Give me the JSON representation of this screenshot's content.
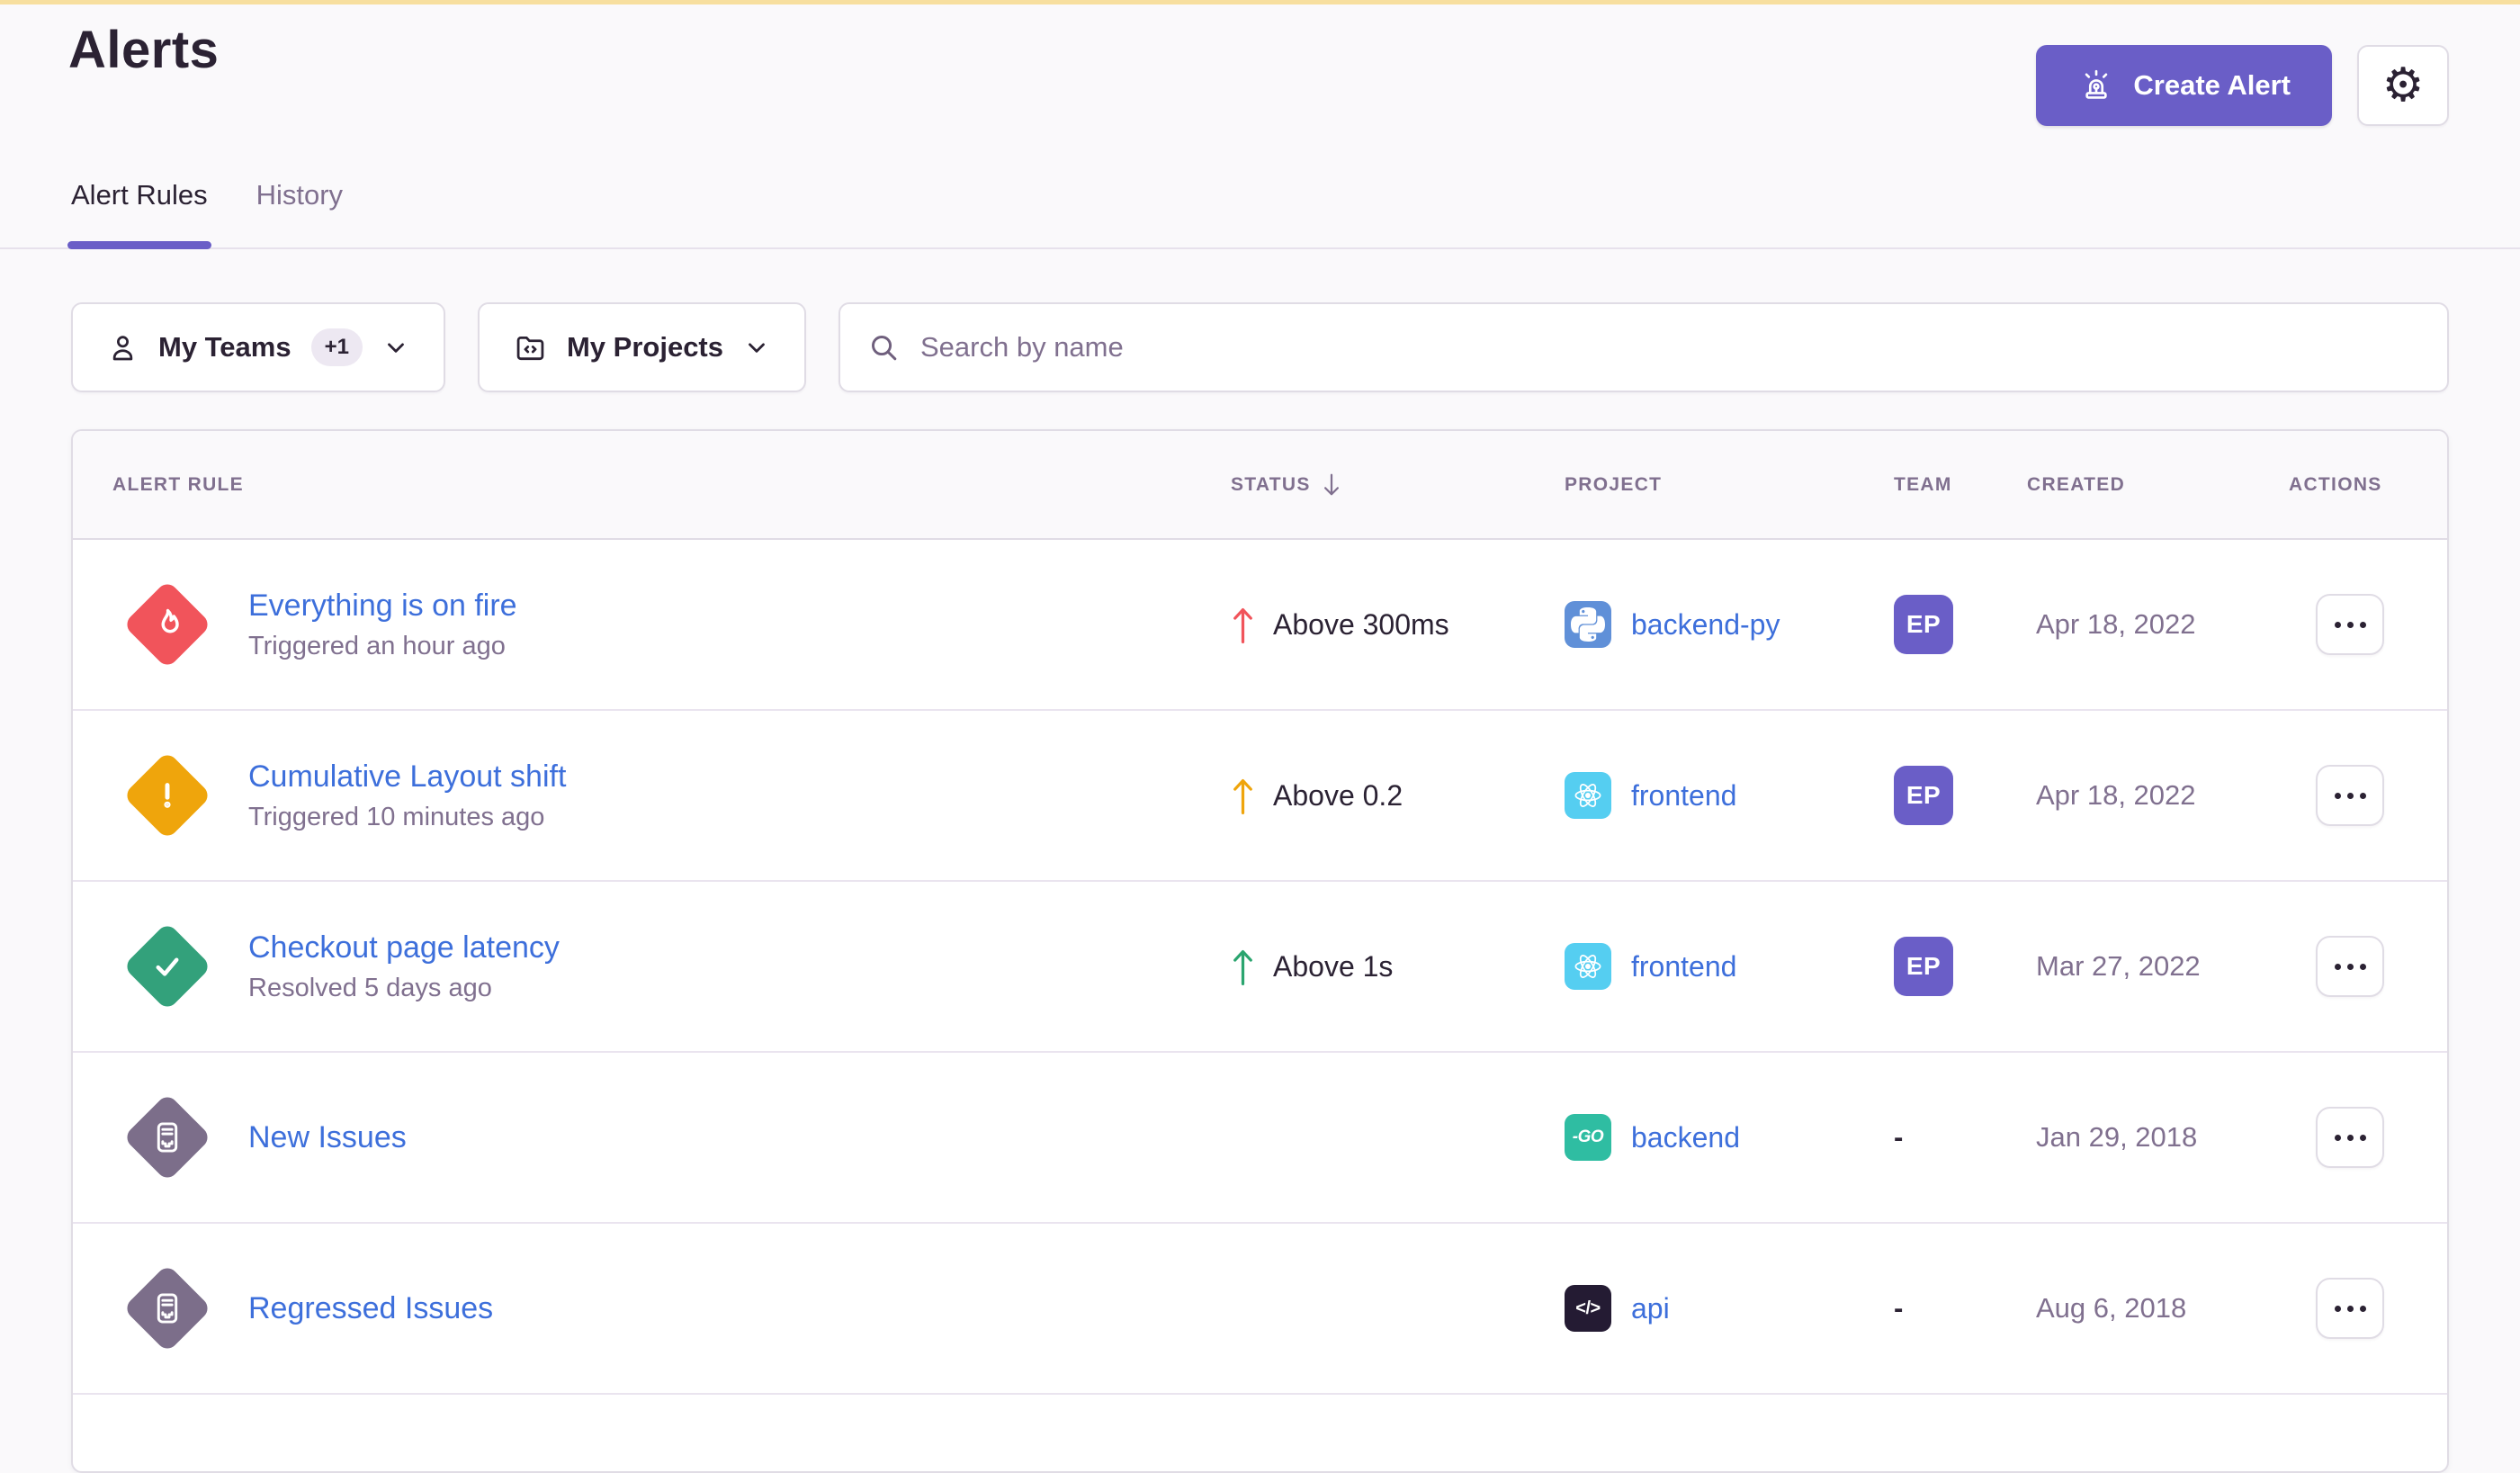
{
  "app": {
    "title": "Alerts",
    "create_alert_label": "Create Alert",
    "top_accent_color": "#F7DF9F",
    "accent_color": "#6A5EC7",
    "link_color": "#3D6FDB"
  },
  "tabs": [
    {
      "label": "Alert Rules",
      "active": true
    },
    {
      "label": "History",
      "active": false
    }
  ],
  "filters": {
    "teams_label": "My Teams",
    "teams_badge": "+1",
    "projects_label": "My Projects",
    "search_placeholder": "Search by name"
  },
  "table": {
    "columns": [
      "Alert Rule",
      "Status",
      "Project",
      "Team",
      "Created",
      "Actions"
    ],
    "sort": {
      "column": "Status",
      "direction": "desc"
    },
    "rows": [
      {
        "icon": "fire",
        "icon_color": "#F1545B",
        "name": "Everything is on fire",
        "subtitle": "Triggered an hour ago",
        "status": "Above 300ms",
        "status_color": "#F1545B",
        "project": "backend-py",
        "platform": "python",
        "team": "EP",
        "created": "Apr 18, 2022"
      },
      {
        "icon": "warning",
        "icon_color": "#EFA50C",
        "name": "Cumulative Layout shift",
        "subtitle": "Triggered 10 minutes ago",
        "status": "Above 0.2",
        "status_color": "#EFA50C",
        "project": "frontend",
        "platform": "react",
        "team": "EP",
        "created": "Apr 18, 2022"
      },
      {
        "icon": "check",
        "icon_color": "#33A17B",
        "name": "Checkout page latency",
        "subtitle": "Resolved 5 days ago",
        "status": "Above 1s",
        "status_color": "#2BA56F",
        "project": "frontend",
        "platform": "react",
        "team": "EP",
        "created": "Mar 27, 2022"
      },
      {
        "icon": "issues",
        "icon_color": "#7C6E8A",
        "name": "New Issues",
        "subtitle": "",
        "status": "",
        "status_color": "",
        "project": "backend",
        "platform": "go",
        "team": "-",
        "created": "Jan 29, 2018"
      },
      {
        "icon": "issues",
        "icon_color": "#7C6E8A",
        "name": "Regressed Issues",
        "subtitle": "",
        "status": "",
        "status_color": "",
        "project": "api",
        "platform": "api",
        "team": "-",
        "created": "Aug 6, 2018"
      }
    ]
  },
  "platforms": {
    "python": {
      "bg": "#6090D8",
      "icon": "python-logo-icon"
    },
    "react": {
      "bg": "#55CEF1",
      "icon": "react-atom-icon"
    },
    "go": {
      "bg": "#2FBDA2",
      "icon": "go-logo-icon",
      "text": "-GO"
    },
    "api": {
      "bg": "#241B33",
      "icon": "code-brackets-icon",
      "text": "</>"
    }
  },
  "team_avatar": {
    "bg": "#6A5EC7"
  }
}
